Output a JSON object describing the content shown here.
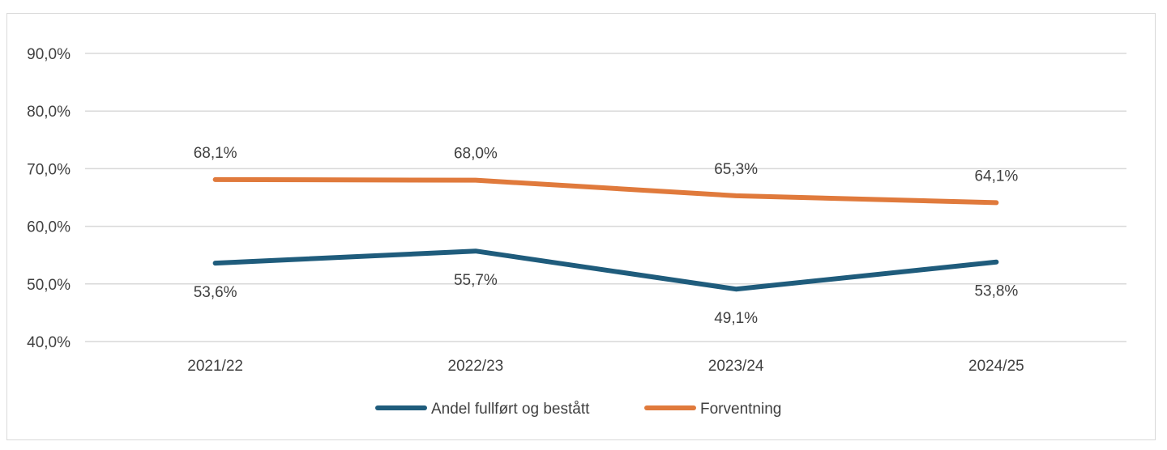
{
  "chart_data": {
    "type": "line",
    "categories": [
      "2021/22",
      "2022/23",
      "2023/24",
      "2024/25"
    ],
    "series": [
      {
        "name": "Andel fullført og bestått",
        "color": "#1f5c7c",
        "values": [
          53.6,
          55.7,
          49.1,
          53.8
        ],
        "labels": [
          "53,6%",
          "55,7%",
          "49,1%",
          "53,8%"
        ]
      },
      {
        "name": "Forventning",
        "color": "#e07a3c",
        "values": [
          68.1,
          68.0,
          65.3,
          64.1
        ],
        "labels": [
          "68,1%",
          "68,0%",
          "65,3%",
          "64,1%"
        ]
      }
    ],
    "ylim": [
      40,
      90
    ],
    "yticks": [
      40,
      50,
      60,
      70,
      80,
      90
    ],
    "ytick_labels": [
      "40,0%",
      "50,0%",
      "60,0%",
      "70,0%",
      "80,0%",
      "90,0%"
    ],
    "grid": true,
    "legend": "bottom"
  }
}
